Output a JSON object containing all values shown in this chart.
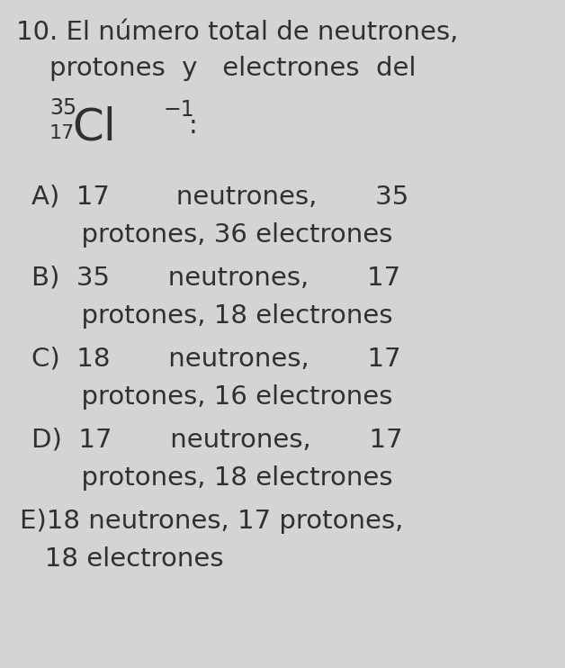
{
  "background_color": "#d4d4d4",
  "text_color": "#303030",
  "figsize": [
    6.28,
    7.42
  ],
  "dpi": 100,
  "q_num": "10.",
  "q_line1": "El número total de neutrones,",
  "q_line2": "protones  y   electrones  del",
  "symbol_mass": "35",
  "symbol_atomic": "17",
  "symbol_element": "Cl",
  "symbol_charge": "−1",
  "colon": ":",
  "opt_A_l1": "A)  17        neutrones,       35",
  "opt_A_l2": "      protones, 36 electrones",
  "opt_B_l1": "B)  35       neutrones,       17",
  "opt_B_l2": "      protones, 18 electrones",
  "opt_C_l1": "C)  18       neutrones,       17",
  "opt_C_l2": "      protones, 16 electrones",
  "opt_D_l1": "D)  17       neutrones,       17",
  "opt_D_l2": "      protones, 18 electrones",
  "opt_E_l1": "E)18 neutrones, 17 protones,",
  "opt_E_l2": "   18 electrones",
  "fq": 21,
  "fo": 21,
  "fsym": 36,
  "fsup": 17,
  "fsub": 16
}
